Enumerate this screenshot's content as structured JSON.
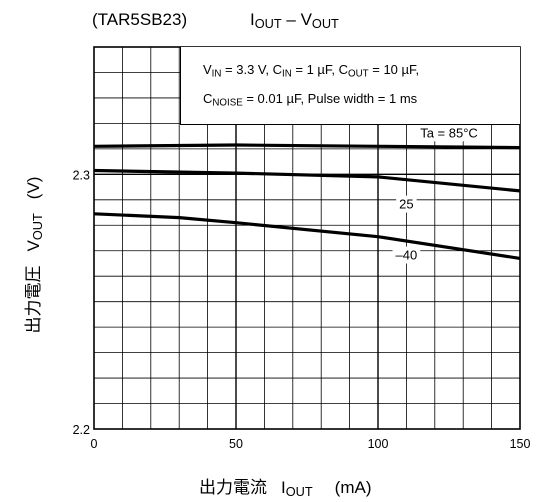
{
  "title": {
    "device": "(TAR5SB23)",
    "quantity": "I",
    "quantity_sub": "OUT",
    "separator": " – ",
    "vs": "V",
    "vs_sub": "OUT"
  },
  "conditions": {
    "line1": {
      "vin": "V",
      "vin_sub": "IN",
      "vin_val": " = 3.3 V, C",
      "cin_sub": "IN",
      "cin_val": " = 1 µF, C",
      "cout_sub": "OUT",
      "cout_val": " = 10 µF,"
    },
    "line2": {
      "cnoise": "C",
      "cnoise_sub": "NOISE",
      "rest": " = 0.01 µF, Pulse width = 1 ms"
    }
  },
  "axes": {
    "ylabel_jp": "出力電圧",
    "ylabel_sym": "V",
    "ylabel_sub": "OUT",
    "ylabel_unit": "(V)",
    "xlabel_jp": "出力電流",
    "xlabel_sym": "I",
    "xlabel_sub": "OUT",
    "xlabel_unit": "(mA)"
  },
  "chart_data": {
    "type": "line",
    "xlim": [
      0,
      150
    ],
    "ylim": [
      2.2,
      2.35
    ],
    "x_ticks": [
      0,
      50,
      100,
      150
    ],
    "x_tick_labels": [
      "0",
      "50",
      "100",
      "150"
    ],
    "y_ticks": [
      2.2,
      2.3
    ],
    "y_tick_labels": [
      "2.2",
      "2.3"
    ],
    "x_grid_step": 10,
    "y_grid_step": 0.01,
    "series": [
      {
        "name": "Ta = 85°C",
        "x": [
          0,
          50,
          100,
          150
        ],
        "y": [
          2.311,
          2.3115,
          2.311,
          2.3105
        ]
      },
      {
        "name": "25",
        "x": [
          0,
          50,
          100,
          150
        ],
        "y": [
          2.3015,
          2.3005,
          2.299,
          2.2935
        ]
      },
      {
        "name": "–40",
        "x": [
          0,
          30,
          50,
          100,
          150
        ],
        "y": [
          2.2845,
          2.283,
          2.281,
          2.2755,
          2.267
        ]
      }
    ],
    "grid": true,
    "legend": "inline labels"
  }
}
